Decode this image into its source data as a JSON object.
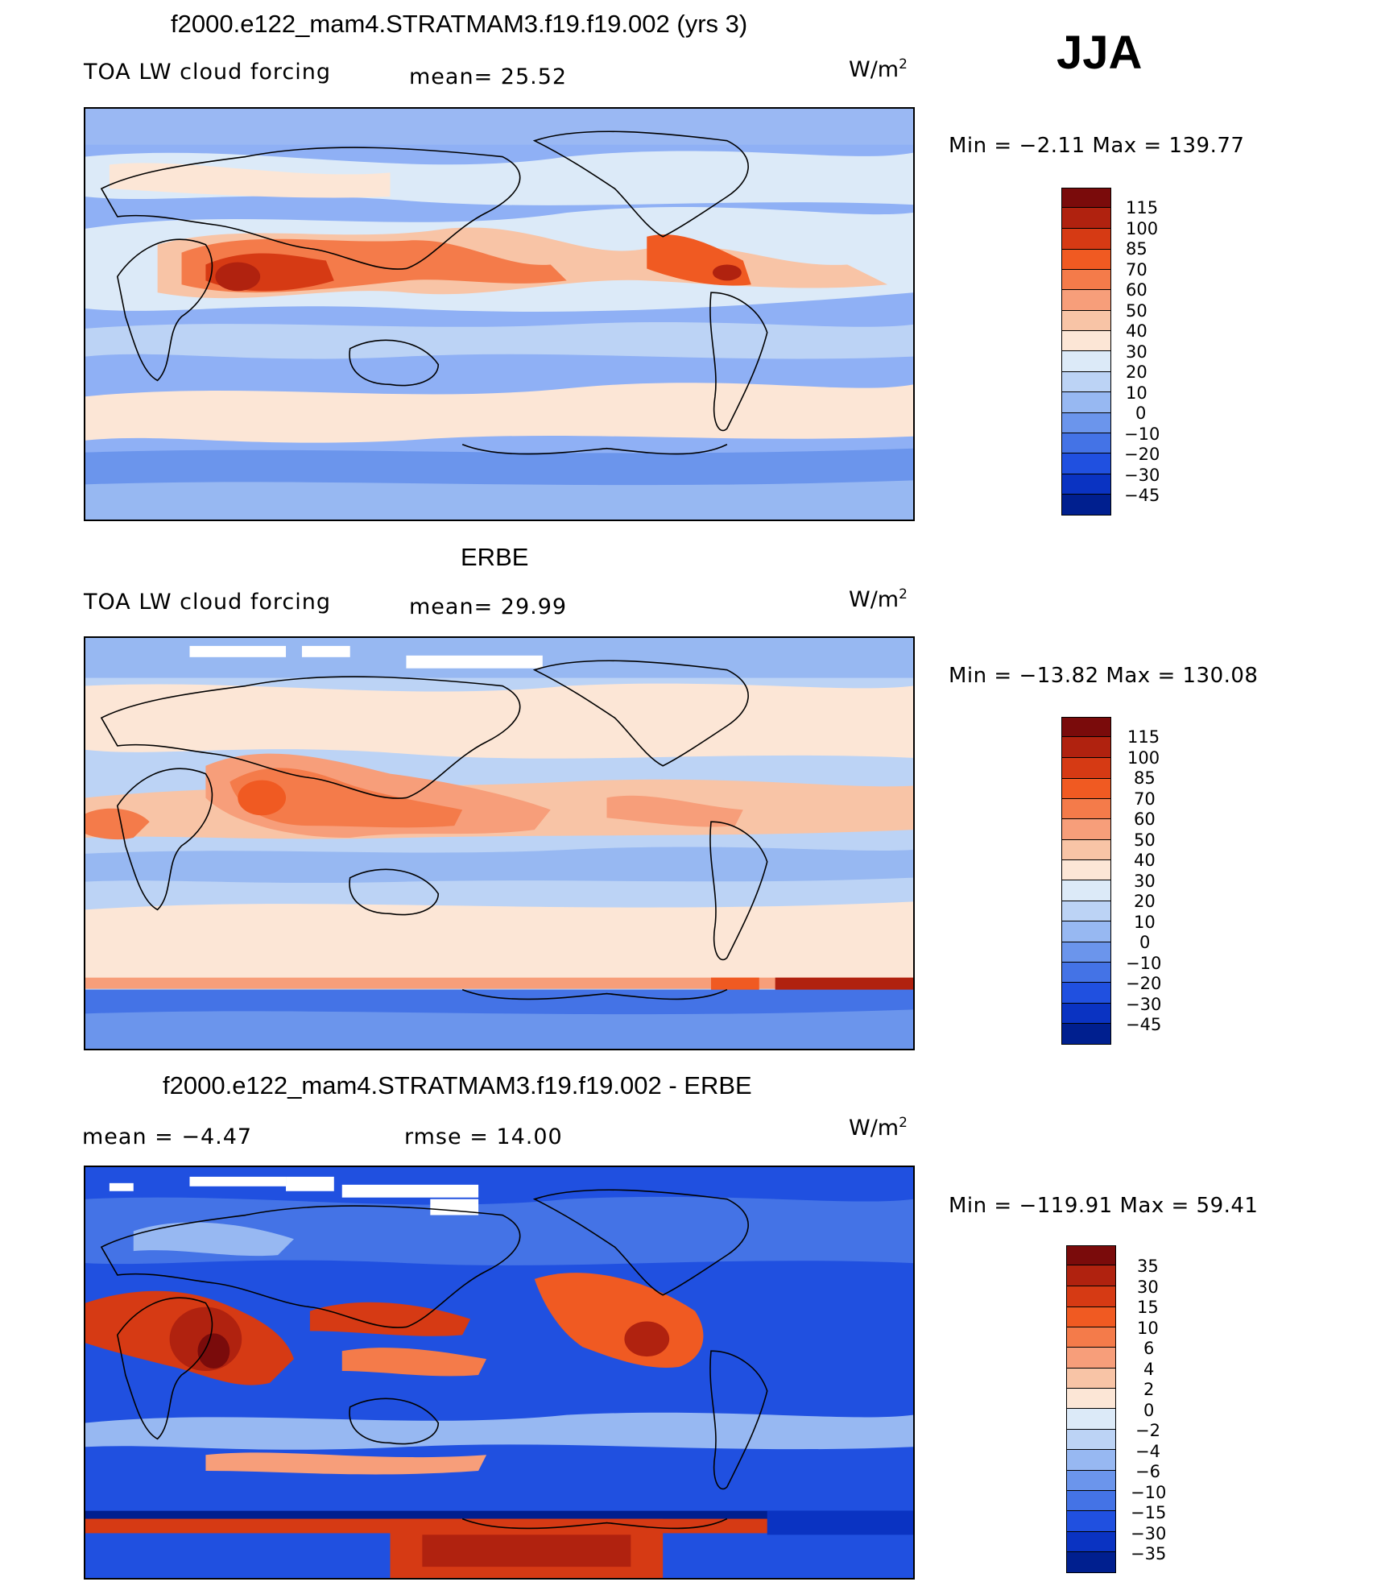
{
  "season": "JJA",
  "units_base": "W/m",
  "units_exp": "2",
  "panels": [
    {
      "title": "f2000.e122_mam4.STRATMAM3.f19.f19.002 (yrs 3)",
      "left_label": "TOA LW cloud forcing",
      "mid_label": "mean=   25.52",
      "minmax": "Min  =    −2.11  Max  =  139.77",
      "colorbar": [
        "115",
        "100",
        "85",
        "70",
        "60",
        "50",
        "40",
        "30",
        "20",
        "10",
        "0",
        "−10",
        "−20",
        "−30",
        "−45"
      ]
    },
    {
      "title": "ERBE",
      "left_label": "TOA LW cloud forcing",
      "mid_label": "mean=   29.99",
      "minmax": "Min  = −13.82  Max  =  130.08",
      "colorbar": [
        "115",
        "100",
        "85",
        "70",
        "60",
        "50",
        "40",
        "30",
        "20",
        "10",
        "0",
        "−10",
        "−20",
        "−30",
        "−45"
      ]
    },
    {
      "title": "f2000.e122_mam4.STRATMAM3.f19.f19.002 - ERBE",
      "left_label": "mean  =    −4.47",
      "mid_label": "rmse  =    14.00",
      "minmax": "Min  = −119.91  Max  =    59.41",
      "colorbar": [
        "35",
        "30",
        "15",
        "10",
        "6",
        "4",
        "2",
        "0",
        "−2",
        "−4",
        "−6",
        "−10",
        "−15",
        "−30",
        "−35"
      ]
    }
  ],
  "palette": [
    "#7a0b0b",
    "#b0220f",
    "#d63a14",
    "#f05a22",
    "#f47b4a",
    "#f79e7a",
    "#f8c4a6",
    "#fce6d6",
    "#dceaf8",
    "#bcd3f5",
    "#97b8f2",
    "#6b95ec",
    "#4473e6",
    "#2050e0",
    "#0a33c2",
    "#001f8f",
    "#000a6b"
  ]
}
